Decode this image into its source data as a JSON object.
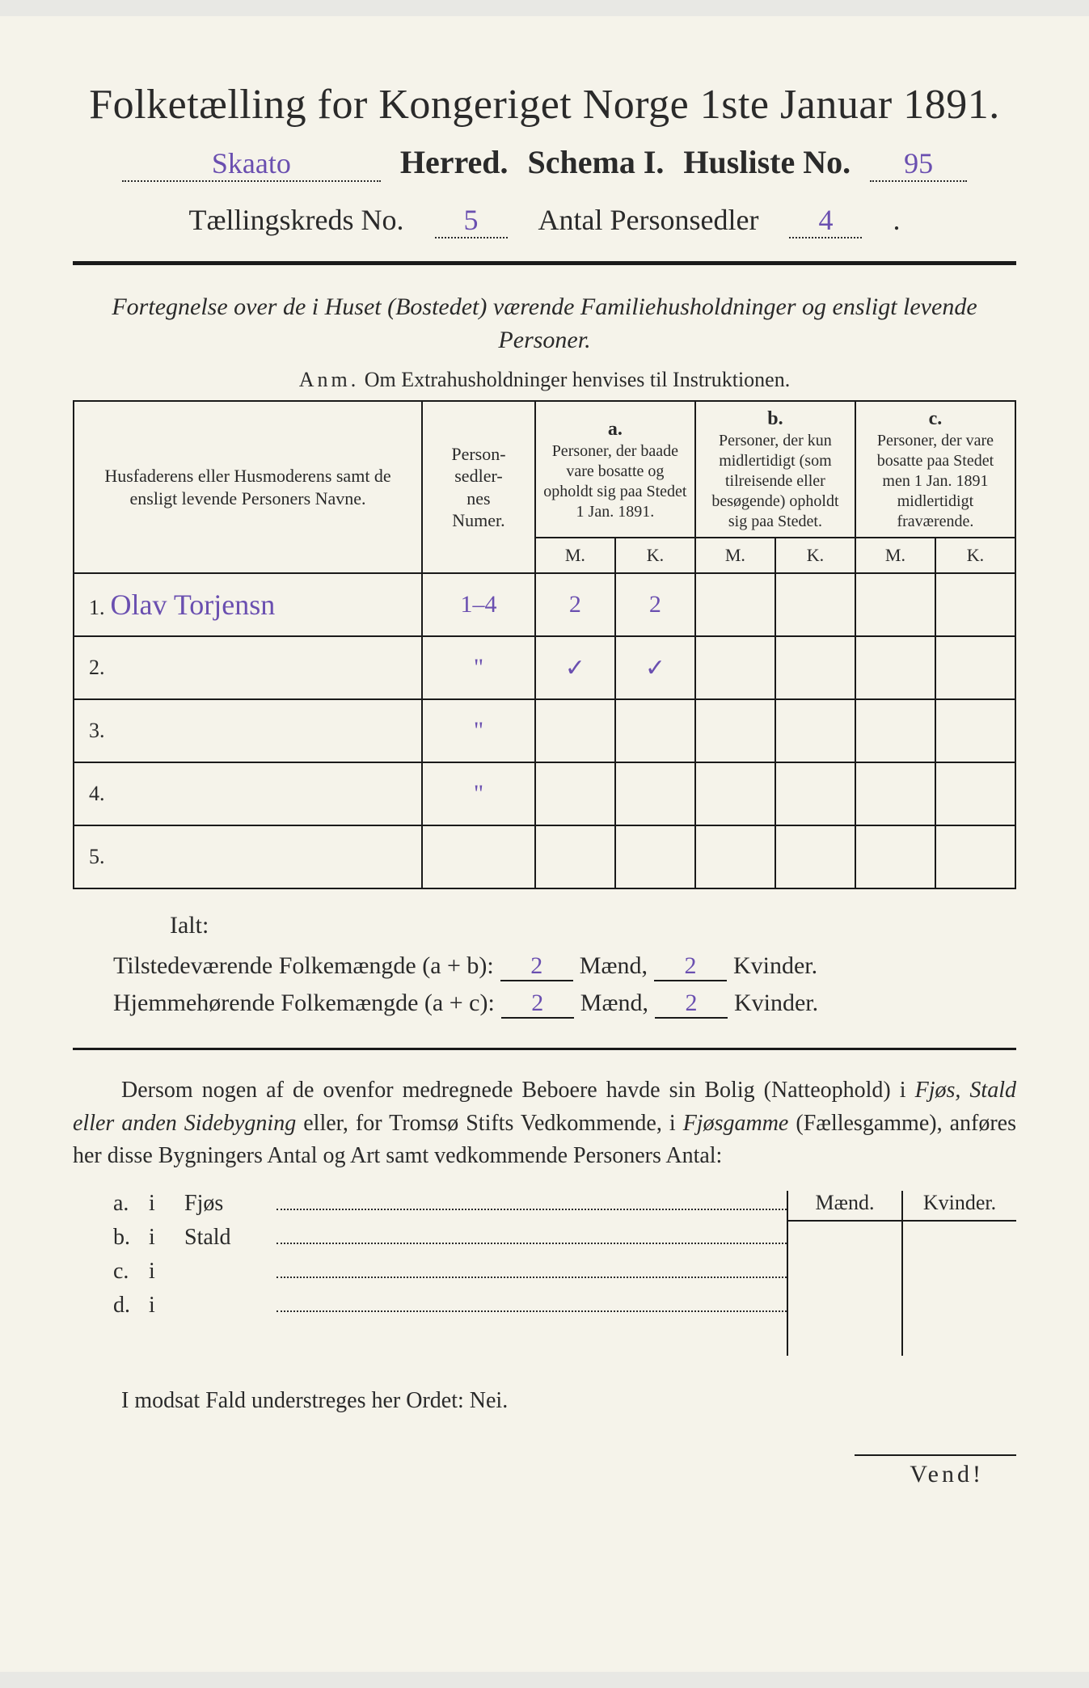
{
  "colors": {
    "paper": "#f5f3ea",
    "ink": "#2a2a2a",
    "rule": "#1a1a1a",
    "handwriting": "#6a4fb0"
  },
  "typography": {
    "title_fontsize_pt": 38,
    "body_fontsize_pt": 21,
    "hand_font": "Brush Script MT"
  },
  "title": "Folketælling for Kongeriget Norge 1ste Januar 1891.",
  "line2": {
    "herred_value": "Skaato",
    "herred_label": "Herred.",
    "schema": "Schema I.",
    "husliste_label": "Husliste No.",
    "husliste_value": "95"
  },
  "line3": {
    "kreds_label": "Tællingskreds No.",
    "kreds_value": "5",
    "antal_label": "Antal Personsedler",
    "antal_value": "4"
  },
  "subhead": "Fortegnelse over de i Huset (Bostedet) værende Familiehusholdninger og ensligt levende Personer.",
  "anm_label": "Anm.",
  "anm_text": "Om Extrahusholdninger henvises til Instruktionen.",
  "table": {
    "col_name": "Husfaderens eller Husmoderens samt de ensligt levende Personers Navne.",
    "col_num": "Person-\nsedler-\nnes\nNumer.",
    "groups": {
      "a": {
        "letter": "a.",
        "desc": "Personer, der baade vare bosatte og opholdt sig paa Stedet 1 Jan. 1891."
      },
      "b": {
        "letter": "b.",
        "desc": "Personer, der kun midlertidigt (som tilreisende eller besøgende) opholdt sig paa Stedet."
      },
      "c": {
        "letter": "c.",
        "desc": "Personer, der vare bosatte paa Stedet men 1 Jan. 1891 midlertidigt fraværende."
      }
    },
    "mk": {
      "m": "M.",
      "k": "K."
    },
    "rows": [
      {
        "n": "1.",
        "name": "Olav Torjensn",
        "num": "1–4",
        "a_m": "2",
        "a_k": "2",
        "b_m": "",
        "b_k": "",
        "c_m": "",
        "c_k": ""
      },
      {
        "n": "2.",
        "name": "",
        "num": "\"",
        "a_m": "✓",
        "a_k": "✓",
        "b_m": "",
        "b_k": "",
        "c_m": "",
        "c_k": ""
      },
      {
        "n": "3.",
        "name": "",
        "num": "\"",
        "a_m": "",
        "a_k": "",
        "b_m": "",
        "b_k": "",
        "c_m": "",
        "c_k": ""
      },
      {
        "n": "4.",
        "name": "",
        "num": "\"",
        "a_m": "",
        "a_k": "",
        "b_m": "",
        "b_k": "",
        "c_m": "",
        "c_k": ""
      },
      {
        "n": "5.",
        "name": "",
        "num": "",
        "a_m": "",
        "a_k": "",
        "b_m": "",
        "b_k": "",
        "c_m": "",
        "c_k": ""
      }
    ]
  },
  "ialt": "Ialt:",
  "sums": {
    "tilstede_label": "Tilstedeværende Folkemængde (a + b):",
    "hjemme_label": "Hjemmehørende Folkemængde (a + c):",
    "maend": "Mænd,",
    "kvinder": "Kvinder.",
    "tilstede_m": "2",
    "tilstede_k": "2",
    "hjemme_m": "2",
    "hjemme_k": "2"
  },
  "para": "Dersom nogen af de ovenfor medregnede Beboere havde sin Bolig (Natteophold) i Fjøs, Stald eller anden Sidebygning eller, for Tromsø Stifts Vedkommende, i Fjøsgamme (Fællesgamme), anføres her disse Bygningers Antal og Art samt vedkommende Personers Antal:",
  "sidebld": {
    "mk_m": "Mænd.",
    "mk_k": "Kvinder.",
    "rows": [
      {
        "lbl": "a.",
        "i": "i",
        "name": "Fjøs"
      },
      {
        "lbl": "b.",
        "i": "i",
        "name": "Stald"
      },
      {
        "lbl": "c.",
        "i": "i",
        "name": ""
      },
      {
        "lbl": "d.",
        "i": "i",
        "name": ""
      }
    ]
  },
  "nei": "I modsat Fald understreges her Ordet: Nei.",
  "vend": "Vend!"
}
